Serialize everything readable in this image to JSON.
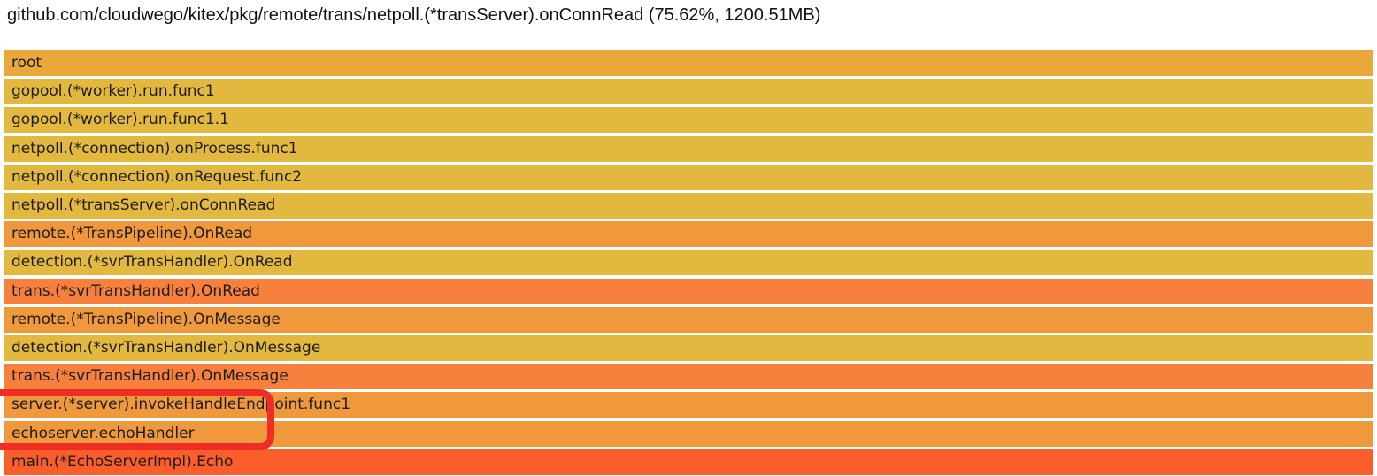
{
  "header": {
    "title": "github.com/cloudwego/kitex/pkg/remote/trans/netpoll.(*transServer).onConnRead (75.62%, 1200.51MB)"
  },
  "colors": {
    "amber": "#e9a83a",
    "gold": "#e3b83e",
    "orange": "#f0983c",
    "deep_orange": "#f7813c",
    "red_orange": "#fb5e2b",
    "annotation_red": "#ee2e24",
    "frame_text": "#1c1c1c",
    "background": "#ffffff"
  },
  "chart_data": {
    "type": "flamegraph",
    "title": "github.com/cloudwego/kitex/pkg/remote/trans/netpoll.(*transServer).onConnRead (75.62%, 1200.51MB)",
    "selected_frame": "netpoll.(*transServer).onConnRead",
    "selected_percent": 75.62,
    "selected_value": "1200.51MB",
    "orientation": "top-down",
    "note_all_frames_full_width": true,
    "frames": [
      {
        "label": "root",
        "color_key": "amber"
      },
      {
        "label": "gopool.(*worker).run.func1",
        "color_key": "gold"
      },
      {
        "label": "gopool.(*worker).run.func1.1",
        "color_key": "gold"
      },
      {
        "label": "netpoll.(*connection).onProcess.func1",
        "color_key": "gold"
      },
      {
        "label": "netpoll.(*connection).onRequest.func2",
        "color_key": "gold"
      },
      {
        "label": "netpoll.(*transServer).onConnRead",
        "color_key": "gold"
      },
      {
        "label": "remote.(*TransPipeline).OnRead",
        "color_key": "orange"
      },
      {
        "label": "detection.(*svrTransHandler).OnRead",
        "color_key": "gold"
      },
      {
        "label": "trans.(*svrTransHandler).OnRead",
        "color_key": "deep_orange"
      },
      {
        "label": "remote.(*TransPipeline).OnMessage",
        "color_key": "orange"
      },
      {
        "label": "detection.(*svrTransHandler).OnMessage",
        "color_key": "gold"
      },
      {
        "label": "trans.(*svrTransHandler).OnMessage",
        "color_key": "deep_orange"
      },
      {
        "label": "server.(*server).invokeHandleEndpoint.func1",
        "color_key": "orange"
      },
      {
        "label": "echoserver.echoHandler",
        "color_key": "orange"
      },
      {
        "label": "main.(*EchoServerImpl).Echo",
        "color_key": "red_orange"
      }
    ],
    "annotation": {
      "type": "red-box-highlight",
      "around_frames": [
        "server.(*server).invokeHandleEndpoint.func1",
        "echoserver.echoHandler"
      ]
    }
  }
}
